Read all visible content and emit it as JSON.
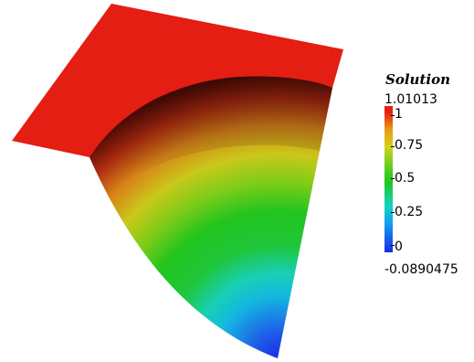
{
  "scalar_bar": {
    "title": "Solution",
    "max_label": "1.01013",
    "min_label": "-0.0890475",
    "tick_labels": [
      "1",
      "0.75",
      "0.5",
      "0.25",
      "0"
    ]
  },
  "colors": {
    "background": "#ffffff",
    "high": "#e41e12",
    "mid_high": "#d6d21a",
    "mid": "#1ec81e",
    "mid_low": "#16d2c4",
    "low": "#1a2be6"
  },
  "colormap": "rainbow (blue to red)"
}
